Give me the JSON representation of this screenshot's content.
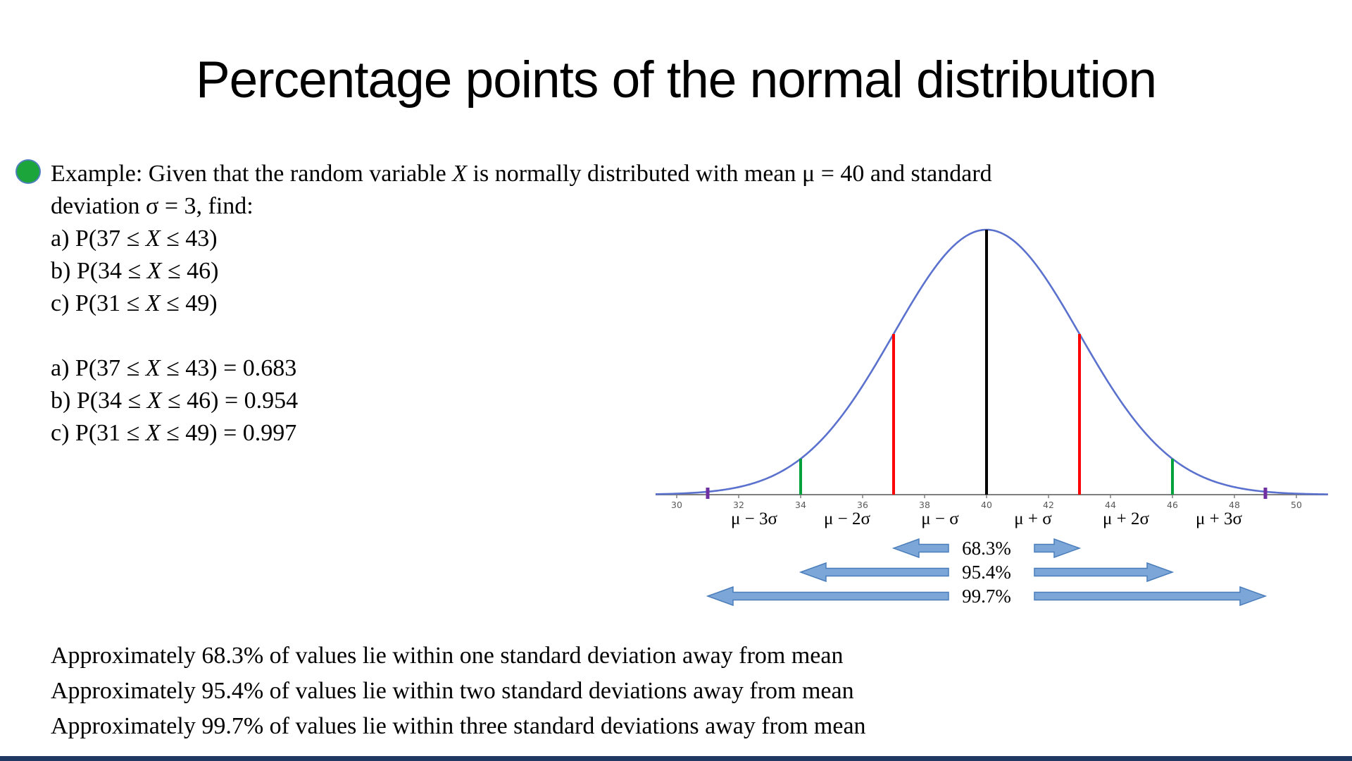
{
  "slide": {
    "title": "Percentage points of the normal distribution",
    "bullet_color": "#1ca53b",
    "bottom_bar_color": "#1f3864",
    "example": {
      "lines": [
        [
          {
            "t": "Example: Given that the random variable "
          },
          {
            "t": "X",
            "i": 1
          },
          {
            "t": " is normally distributed with mean μ = 40 and standard"
          }
        ],
        [
          {
            "t": "deviation σ = 3, find:"
          }
        ],
        [
          {
            "t": "a) P(37 ≤ "
          },
          {
            "t": "X",
            "i": 1
          },
          {
            "t": " ≤ 43)"
          }
        ],
        [
          {
            "t": "b) P(34 ≤ "
          },
          {
            "t": "X",
            "i": 1
          },
          {
            "t": " ≤ 46)"
          }
        ],
        [
          {
            "t": "c) P(31 ≤ "
          },
          {
            "t": "X",
            "i": 1
          },
          {
            "t": " ≤ 49)"
          }
        ],
        "",
        [
          {
            "t": "a) P(37 ≤ "
          },
          {
            "t": "X",
            "i": 1
          },
          {
            "t": " ≤ 43) = 0.683"
          }
        ],
        [
          {
            "t": "b) P(34 ≤ "
          },
          {
            "t": "X",
            "i": 1
          },
          {
            "t": " ≤ 46) = 0.954"
          }
        ],
        [
          {
            "t": "c) P(31 ≤ "
          },
          {
            "t": "X",
            "i": 1
          },
          {
            "t": " ≤ 49) = 0.997"
          }
        ]
      ]
    },
    "conclusions": [
      "Approximately 68.3% of values lie within one standard deviation away from mean",
      "Approximately 95.4% of values lie within two standard deviations away from mean",
      "Approximately 99.7% of values lie within three standard deviations away from mean"
    ]
  },
  "chart_data": {
    "type": "line",
    "title": "Normal distribution curve with mean 40 and standard deviation 3",
    "distribution": {
      "mean": 40,
      "sigma": 3
    },
    "x_range": [
      29.32,
      51.02
    ],
    "x_ticks": [
      30,
      32,
      34,
      36,
      38,
      40,
      42,
      44,
      46,
      48,
      50
    ],
    "curve_color": "#5b71ce",
    "axis_color": "#7f7f7f",
    "tick_label_color": "#595959",
    "vlines": [
      {
        "x": 31,
        "color": "#7030a0",
        "style": "marker"
      },
      {
        "x": 34,
        "color": "#00a03c",
        "style": "full"
      },
      {
        "x": 37,
        "color": "#ff0000",
        "style": "full"
      },
      {
        "x": 40,
        "color": "#000000",
        "style": "full"
      },
      {
        "x": 43,
        "color": "#ff0000",
        "style": "full"
      },
      {
        "x": 46,
        "color": "#00a03c",
        "style": "full"
      },
      {
        "x": 49,
        "color": "#7030a0",
        "style": "marker"
      }
    ],
    "sigma_labels": [
      {
        "text": "μ − 3σ",
        "x": 32.5
      },
      {
        "text": "μ − 2σ",
        "x": 35.5
      },
      {
        "text": "μ − σ",
        "x": 38.5
      },
      {
        "text": "μ + σ",
        "x": 41.5
      },
      {
        "text": "μ + 2σ",
        "x": 44.5
      },
      {
        "text": "μ + 3σ",
        "x": 47.5
      }
    ],
    "arrows": [
      {
        "label": "68.3%",
        "from": 37,
        "to": 43
      },
      {
        "label": "95.4%",
        "from": 34,
        "to": 46
      },
      {
        "label": "99.7%",
        "from": 31,
        "to": 49
      }
    ],
    "arrow_fill": "#7da6d8",
    "arrow_stroke": "#4a7ebb"
  }
}
